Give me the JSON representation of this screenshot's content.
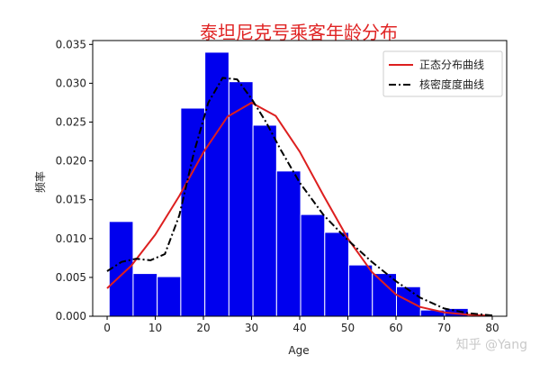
{
  "chart_data": {
    "type": "bar",
    "title": "泰坦尼克号乘客年龄分布",
    "xlabel": "Age",
    "ylabel": "频率",
    "xlim": [
      -3,
      83
    ],
    "ylim": [
      0,
      0.0355
    ],
    "xticks": [
      0,
      10,
      20,
      30,
      40,
      50,
      60,
      70,
      80
    ],
    "yticks": [
      0.0,
      0.005,
      0.01,
      0.015,
      0.02,
      0.025,
      0.03,
      0.035
    ],
    "yticks_labels": [
      "0.000",
      "0.005",
      "0.010",
      "0.015",
      "0.020",
      "0.025",
      "0.030",
      "0.035"
    ],
    "bar_color": "#0000ee",
    "bins": {
      "edges": [
        0.42,
        5.4,
        10.4,
        15.3,
        20.3,
        25.3,
        30.3,
        35.2,
        40.2,
        45.2,
        50.2,
        55.1,
        60.1,
        65.1,
        70.1,
        75.0,
        80.0
      ],
      "values": [
        0.0122,
        0.0055,
        0.0051,
        0.0268,
        0.034,
        0.0302,
        0.0246,
        0.0187,
        0.0131,
        0.0108,
        0.0066,
        0.0055,
        0.0038,
        0.0008,
        0.001,
        0.0001
      ]
    },
    "series": [
      {
        "name": "正态分布曲线",
        "kind": "line",
        "style": "solid",
        "color": "#dd1f1f",
        "x": [
          0,
          5,
          10,
          15,
          20,
          25,
          30,
          35,
          40,
          45,
          50,
          55,
          60,
          65,
          70,
          75,
          80
        ],
        "y": [
          0.0036,
          0.0065,
          0.0105,
          0.0155,
          0.0211,
          0.0257,
          0.0275,
          0.0258,
          0.0212,
          0.0155,
          0.01,
          0.0057,
          0.0028,
          0.0012,
          0.0005,
          0.0002,
          5e-05
        ]
      },
      {
        "name": "核密度度曲线",
        "kind": "line",
        "style": "dashdot",
        "color": "#000000",
        "x": [
          0,
          3,
          6,
          9,
          12,
          15,
          18,
          21,
          24,
          27,
          30,
          33,
          36,
          40,
          45,
          50,
          55,
          60,
          65,
          70,
          75,
          80
        ],
        "y": [
          0.0058,
          0.007,
          0.0074,
          0.0072,
          0.008,
          0.013,
          0.021,
          0.0275,
          0.0307,
          0.0305,
          0.028,
          0.025,
          0.0215,
          0.0172,
          0.013,
          0.0098,
          0.007,
          0.0045,
          0.0024,
          0.001,
          0.0004,
          0.0001
        ]
      }
    ],
    "legend": {
      "position": "top-right",
      "labels": [
        "正态分布曲线",
        "核密度度曲线"
      ]
    }
  },
  "watermark": "知乎 @Yang"
}
